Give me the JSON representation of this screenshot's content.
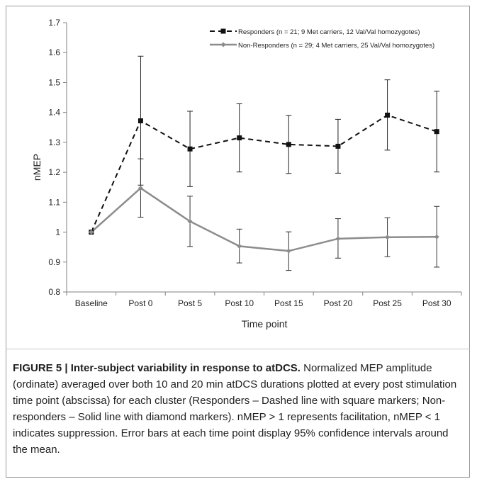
{
  "chart_data": {
    "type": "line",
    "categories": [
      "Baseline",
      "Post 0",
      "Post 5",
      "Post 10",
      "Post 15",
      "Post 20",
      "Post 25",
      "Post 30"
    ],
    "ylabel": "nMEP",
    "xlabel": "Time point",
    "ylim": [
      0.8,
      1.7
    ],
    "yticks": [
      "0.8",
      "0.9",
      "1",
      "1.1",
      "1.2",
      "1.3",
      "1.4",
      "1.5",
      "1.6",
      "1.7"
    ],
    "grid": false,
    "legend_position": "top-right",
    "series": [
      {
        "name": "Responders (n = 21; 9 Met carriers, 12 Val/Val homozygotes)",
        "values": [
          1.0,
          1.372,
          1.278,
          1.315,
          1.293,
          1.287,
          1.391,
          1.336
        ],
        "err_high": [
          1.0,
          1.588,
          1.404,
          1.429,
          1.39,
          1.377,
          1.509,
          1.471
        ],
        "err_low": [
          1.0,
          1.157,
          1.152,
          1.201,
          1.196,
          1.197,
          1.274,
          1.201
        ],
        "line_style": "dashed",
        "marker": "square",
        "color": "#111111"
      },
      {
        "name": "Non-Responders (n = 29; 4 Met carriers, 25 Val/Val homozygotes)",
        "values": [
          1.0,
          1.147,
          1.036,
          0.953,
          0.937,
          0.978,
          0.983,
          0.984
        ],
        "err_high": [
          1.0,
          1.245,
          1.12,
          1.01,
          1.001,
          1.045,
          1.048,
          1.086
        ],
        "err_low": [
          1.0,
          1.05,
          0.952,
          0.897,
          0.872,
          0.913,
          0.918,
          0.883
        ],
        "line_style": "solid",
        "marker": "diamond",
        "color": "#8c8c8c"
      }
    ]
  },
  "caption": {
    "label": "FIGURE 5 | Inter-subject variability in response to atDCS.",
    "text": " Normalized MEP amplitude (ordinate) averaged over both 10 and 20 min atDCS durations plotted at every post stimulation time point (abscissa) for each cluster (Responders – Dashed line with square markers; Non-responders – Solid line with diamond markers). nMEP > 1 represents facilitation, nMEP < 1 indicates suppression. Error bars at each time point display 95% confidence intervals around the mean."
  }
}
